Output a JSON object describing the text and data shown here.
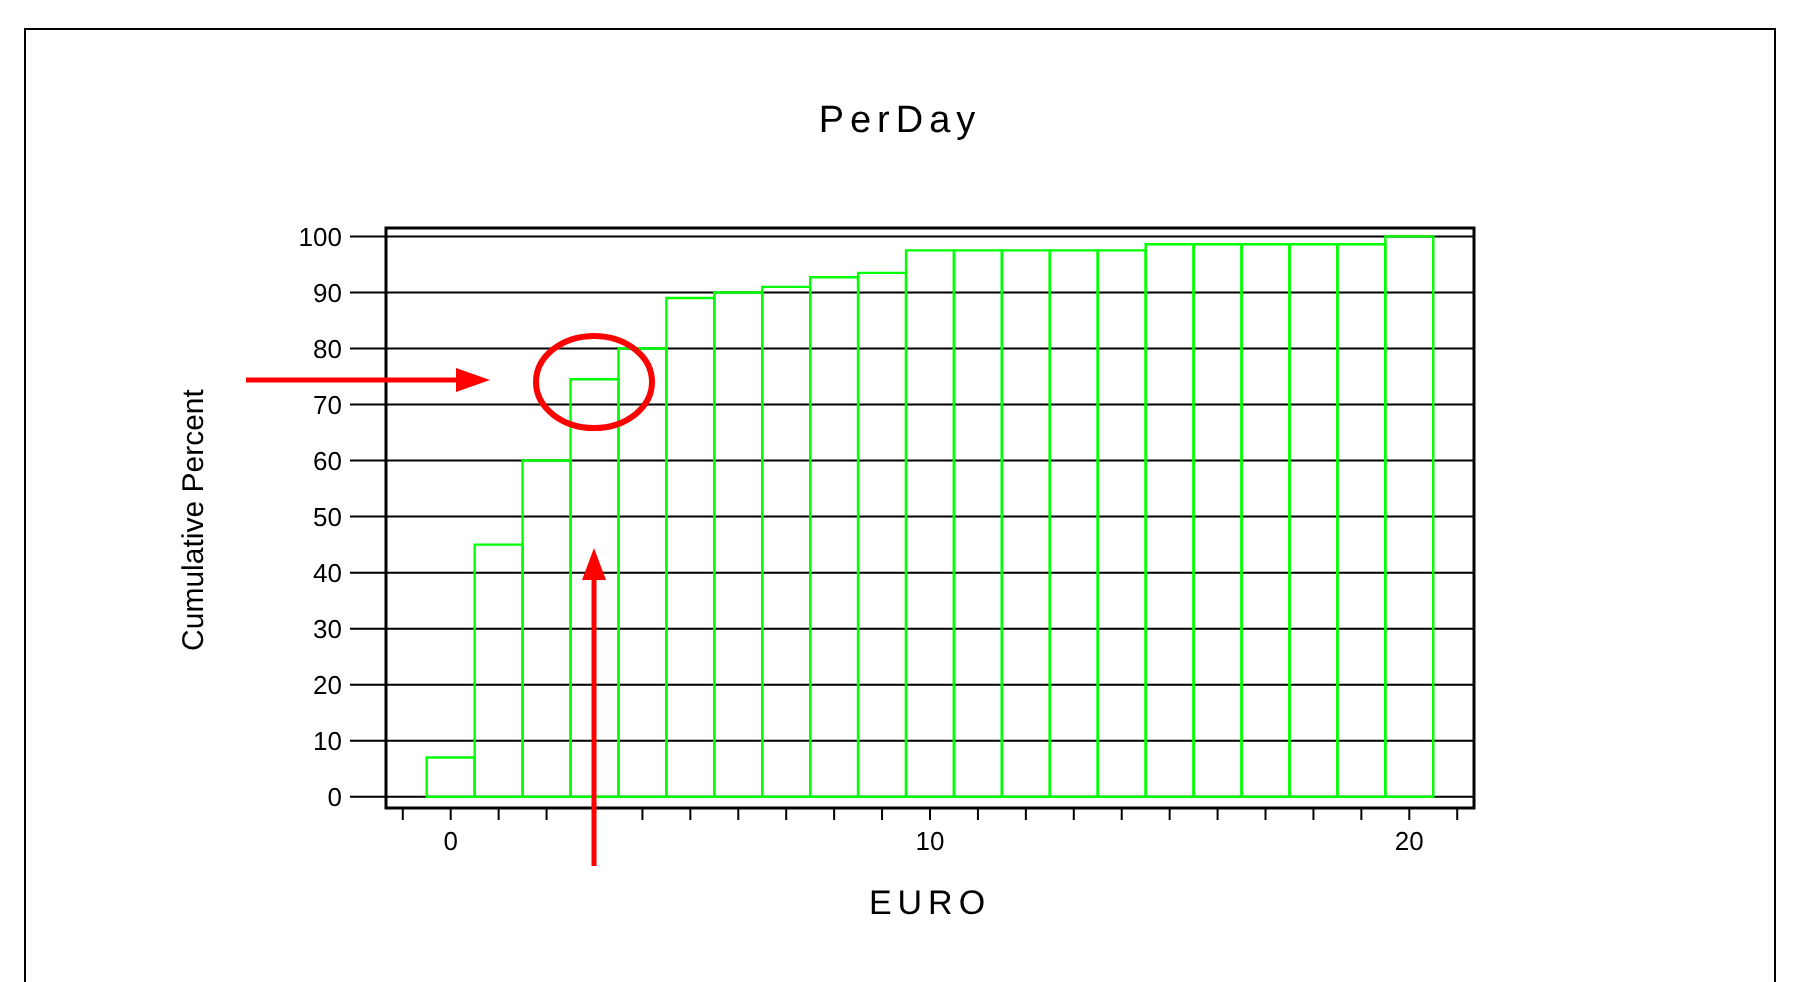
{
  "chart_data": {
    "type": "histogram",
    "title": "PerDay",
    "xlabel": "EURO",
    "ylabel": "Cumulative Percent",
    "bins": [
      -0.5,
      0.5,
      1.5,
      2.5,
      3.5,
      4.5,
      5.5,
      6.5,
      7.5,
      8.5,
      9.5,
      10.5,
      11.5,
      12.5,
      13.5,
      14.5,
      15.5,
      16.5,
      17.5,
      18.5,
      19.5,
      20.5
    ],
    "values": [
      7,
      45,
      60,
      74.5,
      80,
      89,
      90,
      91,
      92.7,
      93.5,
      97.5,
      97.5,
      97.5,
      97.5,
      97.5,
      98.6,
      98.6,
      98.6,
      98.6,
      98.6,
      100
    ],
    "color": "#00ff00",
    "xlim": [
      -1.35,
      21.35
    ],
    "xticks": [
      {
        "value": -1,
        "label": null
      },
      0,
      {
        "value": 1,
        "label": null
      },
      {
        "value": 2,
        "label": null
      },
      {
        "value": 3,
        "label": null
      },
      {
        "value": 4,
        "label": null
      },
      {
        "value": 5,
        "label": null
      },
      {
        "value": 6,
        "label": null
      },
      {
        "value": 7,
        "label": null
      },
      {
        "value": 8,
        "label": null
      },
      {
        "value": 9,
        "label": null
      },
      10,
      {
        "value": 11,
        "label": null
      },
      {
        "value": 12,
        "label": null
      },
      {
        "value": 13,
        "label": null
      },
      {
        "value": 14,
        "label": null
      },
      {
        "value": 15,
        "label": null
      },
      {
        "value": 16,
        "label": null
      },
      {
        "value": 17,
        "label": null
      },
      {
        "value": 18,
        "label": null
      },
      {
        "value": 19,
        "label": null
      },
      20,
      {
        "value": 21,
        "label": null
      }
    ],
    "ylim": [
      -2,
      101.5
    ],
    "yticks": [
      0,
      10,
      20,
      30,
      40,
      50,
      60,
      70,
      80,
      90,
      100
    ],
    "grid": "y"
  }
}
